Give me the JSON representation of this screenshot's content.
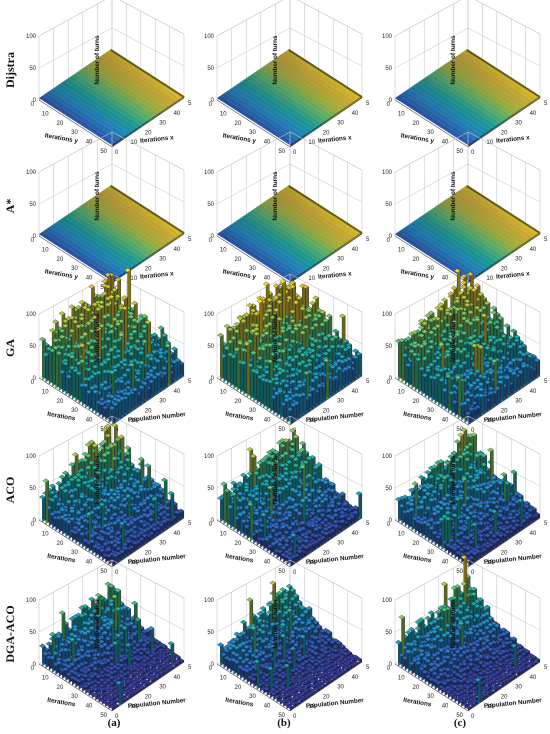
{
  "figure": {
    "columns": [
      "(a)",
      "(b)",
      "(c)"
    ],
    "rows": [
      {
        "label": "Dijstra",
        "kind": "flat",
        "xlabel": "Iterations x",
        "ylabel": "Iterations y",
        "zlabel": "Number of turns",
        "xticks": [
          "10",
          "20",
          "30",
          "40",
          "5"
        ],
        "yticks": [
          "10",
          "20",
          "30",
          "40",
          "50"
        ]
      },
      {
        "label": "A*",
        "kind": "flat",
        "xlabel": "Iterations x",
        "ylabel": "Iterations y",
        "zlabel": "Number of turns",
        "xticks": [
          "10",
          "20",
          "30",
          "40",
          "5"
        ],
        "yticks": [
          "10",
          "20",
          "30",
          "40",
          "50"
        ]
      },
      {
        "label": "GA",
        "kind": "bars",
        "xlabel": "Population Number",
        "ylabel": "Iterations",
        "zlabel": "Number of turns",
        "xticks": [
          "10",
          "20",
          "30",
          "40",
          "5"
        ],
        "yticks": [
          "10",
          "20",
          "30",
          "40",
          "50"
        ]
      },
      {
        "label": "ACO",
        "kind": "bars",
        "xlabel": "Population Number",
        "ylabel": "Iterations",
        "zlabel": "Number of turns",
        "xticks": [
          "10",
          "20",
          "30",
          "40",
          "5"
        ],
        "yticks": [
          "10",
          "20",
          "30",
          "40",
          "50"
        ]
      },
      {
        "label": "DGA-ACO",
        "kind": "bars",
        "xlabel": "Population Number",
        "ylabel": "Iterations",
        "zlabel": "Number of turns",
        "xticks": [
          "10",
          "20",
          "30",
          "40",
          "5"
        ],
        "yticks": [
          "10",
          "20",
          "30",
          "40",
          "50"
        ]
      }
    ],
    "zticks": [
      "0",
      "50",
      "100"
    ],
    "zero_tick": "0",
    "colormap": [
      "#352a87",
      "#2c5fb8",
      "#1f8ec8",
      "#1aa79b",
      "#5bbd6e",
      "#b0bd3b",
      "#d9b631",
      "#f0d321"
    ]
  },
  "chart_data": [
    {
      "type": "bar3d",
      "panel": "Dijstra (a)",
      "zlim": [
        0,
        100
      ],
      "x_range": [
        0,
        50
      ],
      "y_range": [
        0,
        50
      ],
      "z_values": "near 0 everywhere (flat surface)"
    },
    {
      "type": "bar3d",
      "panel": "Dijstra (b)",
      "zlim": [
        0,
        100
      ],
      "x_range": [
        0,
        50
      ],
      "y_range": [
        0,
        50
      ],
      "z_values": "near 0 everywhere (flat surface)"
    },
    {
      "type": "bar3d",
      "panel": "Dijstra (c)",
      "zlim": [
        0,
        100
      ],
      "x_range": [
        0,
        50
      ],
      "y_range": [
        0,
        50
      ],
      "z_values": "near 0 everywhere (flat surface)"
    },
    {
      "type": "bar3d",
      "panel": "A* (a)",
      "zlim": [
        0,
        100
      ],
      "x_range": [
        0,
        50
      ],
      "y_range": [
        0,
        50
      ],
      "z_values": "near 0 everywhere (flat surface)"
    },
    {
      "type": "bar3d",
      "panel": "A* (b)",
      "zlim": [
        0,
        100
      ],
      "x_range": [
        0,
        50
      ],
      "y_range": [
        0,
        50
      ],
      "z_values": "near 0 everywhere (flat surface)"
    },
    {
      "type": "bar3d",
      "panel": "A* (c)",
      "zlim": [
        0,
        100
      ],
      "x_range": [
        0,
        50
      ],
      "y_range": [
        0,
        50
      ],
      "z_values": "near 0 everywhere (flat surface)"
    },
    {
      "type": "bar3d",
      "panel": "GA (a)",
      "zlim": [
        0,
        100
      ],
      "x_range": [
        0,
        50
      ],
      "y_range": [
        0,
        50
      ],
      "peak_max": 100,
      "typical_range": [
        20,
        95
      ]
    },
    {
      "type": "bar3d",
      "panel": "GA (b)",
      "zlim": [
        0,
        100
      ],
      "x_range": [
        0,
        50
      ],
      "y_range": [
        0,
        50
      ],
      "peak_max": 110,
      "typical_range": [
        20,
        95
      ]
    },
    {
      "type": "bar3d",
      "panel": "GA (c)",
      "zlim": [
        0,
        100
      ],
      "x_range": [
        0,
        50
      ],
      "y_range": [
        0,
        50
      ],
      "peak_max": 95,
      "typical_range": [
        20,
        85
      ]
    },
    {
      "type": "bar3d",
      "panel": "ACO (a)",
      "zlim": [
        0,
        100
      ],
      "x_range": [
        0,
        50
      ],
      "y_range": [
        0,
        50
      ],
      "peak_max": 100,
      "typical_range": [
        10,
        85
      ]
    },
    {
      "type": "bar3d",
      "panel": "ACO (b)",
      "zlim": [
        0,
        100
      ],
      "x_range": [
        0,
        50
      ],
      "y_range": [
        0,
        50
      ],
      "peak_max": 95,
      "typical_range": [
        10,
        85
      ]
    },
    {
      "type": "bar3d",
      "panel": "ACO (c)",
      "zlim": [
        0,
        100
      ],
      "x_range": [
        0,
        50
      ],
      "y_range": [
        0,
        50
      ],
      "peak_max": 90,
      "typical_range": [
        10,
        80
      ]
    },
    {
      "type": "bar3d",
      "panel": "DGA-ACO (a)",
      "zlim": [
        0,
        100
      ],
      "x_range": [
        0,
        50
      ],
      "y_range": [
        0,
        50
      ],
      "peak_max": 80,
      "typical_range": [
        5,
        70
      ]
    },
    {
      "type": "bar3d",
      "panel": "DGA-ACO (b)",
      "zlim": [
        0,
        100
      ],
      "x_range": [
        0,
        50
      ],
      "y_range": [
        0,
        50
      ],
      "peak_max": 85,
      "typical_range": [
        5,
        70
      ]
    },
    {
      "type": "bar3d",
      "panel": "DGA-ACO (c)",
      "zlim": [
        0,
        100
      ],
      "x_range": [
        0,
        50
      ],
      "y_range": [
        0,
        50
      ],
      "peak_max": 95,
      "typical_range": [
        5,
        70
      ]
    }
  ]
}
